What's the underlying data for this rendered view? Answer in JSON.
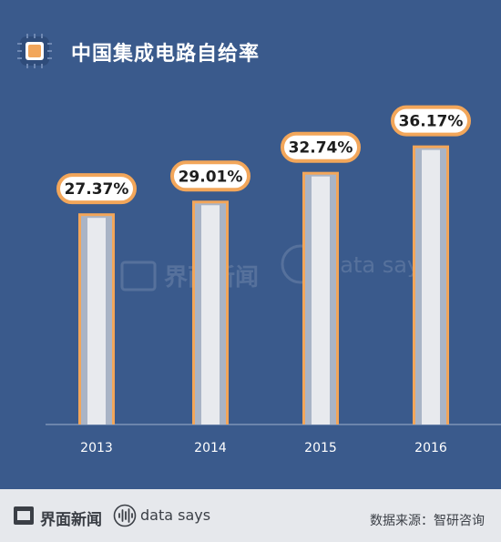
{
  "header": {
    "title": "中国集成电路自给率",
    "icon": "chip-icon"
  },
  "watermark": {
    "brand": "界面新闻",
    "tagline": "data says"
  },
  "chart_data": {
    "type": "bar",
    "title": "中国集成电路自给率",
    "categories": [
      "2013",
      "2014",
      "2015",
      "2016"
    ],
    "values": [
      27.37,
      29.01,
      32.74,
      36.17
    ],
    "data_labels": [
      "27.37%",
      "29.01%",
      "32.74%",
      "36.17%"
    ],
    "unit": "%",
    "xlabel": "",
    "ylabel": "",
    "grid": false,
    "colors": {
      "background": "#3a5a8c",
      "bar_outline": "#f2a65a",
      "bar_fill": "#e8eaee",
      "bar_inner": "#a9b4c6",
      "label_bg": "#ffffff"
    }
  },
  "footer": {
    "brand": "界面新闻",
    "datasays": "data says",
    "source": "数据来源：智研咨询"
  }
}
